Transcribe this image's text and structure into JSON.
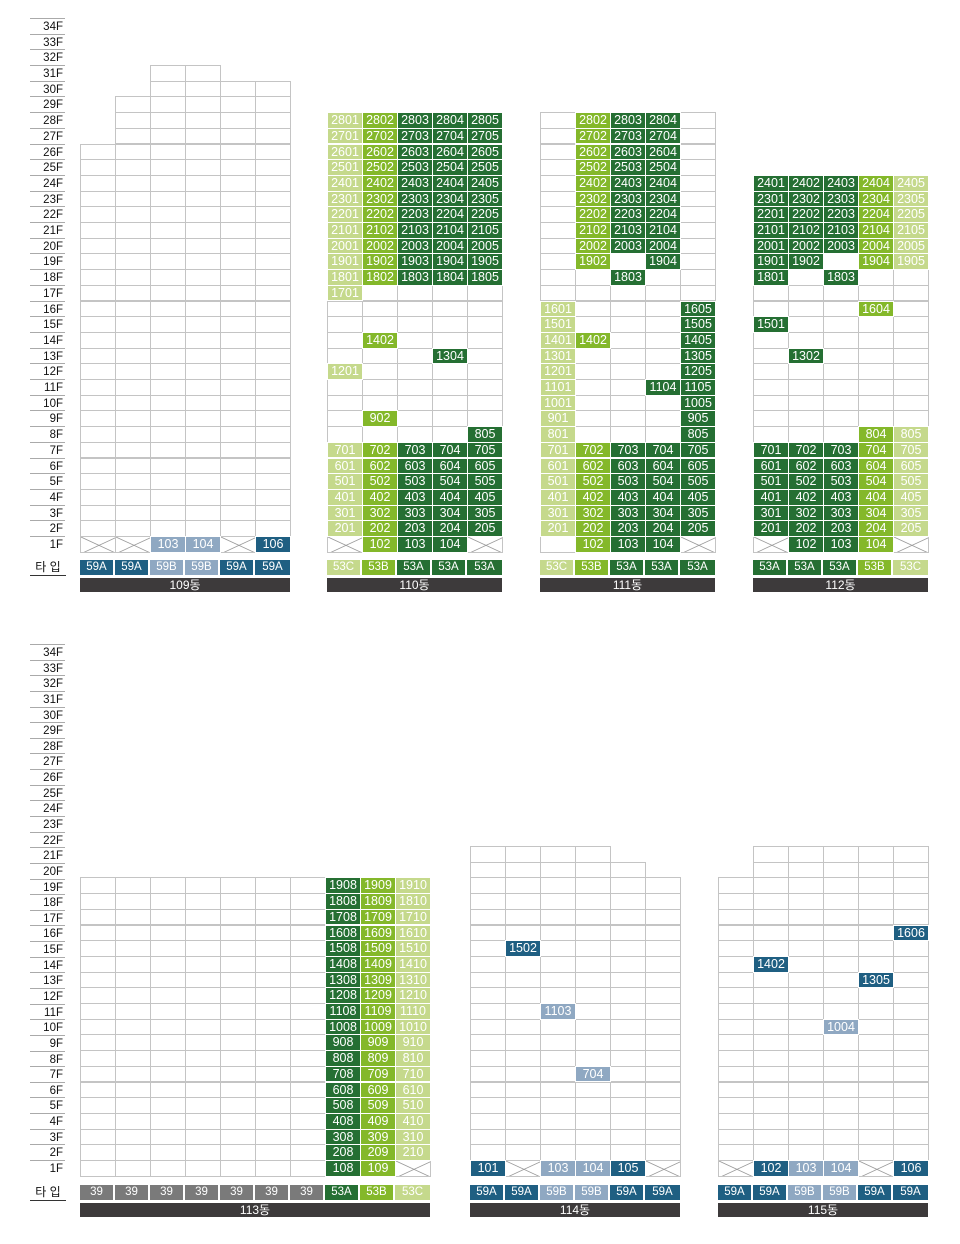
{
  "type_label": "타 입",
  "colors": {
    "53A": "#256f33",
    "53B": "#84b82a",
    "53C": "#c5d98c",
    "59A": "#1f5f82",
    "59B": "#8fa8c2",
    "39": "#7a7a7a"
  },
  "floor_labels": [
    "34F",
    "33F",
    "32F",
    "31F",
    "30F",
    "29F",
    "28F",
    "27F",
    "26F",
    "25F",
    "24F",
    "23F",
    "22F",
    "21F",
    "20F",
    "19F",
    "18F",
    "17F",
    "16F",
    "15F",
    "14F",
    "13F",
    "12F",
    "11F",
    "10F",
    "9F",
    "8F",
    "7F",
    "6F",
    "5F",
    "4F",
    "3F",
    "2F",
    "1F"
  ],
  "buildings": [
    {
      "name": "109동",
      "types": [
        "59A",
        "59A",
        "59B",
        "59B",
        "59A",
        "59A"
      ],
      "col_heights": [
        26,
        29,
        31,
        31,
        30,
        30
      ],
      "x_cells": [
        "101",
        "102",
        "105"
      ],
      "units": [
        "103",
        "104",
        "106"
      ]
    },
    {
      "name": "110동",
      "types": [
        "53C",
        "53B",
        "53A",
        "53A",
        "53A"
      ],
      "col_heights": [
        28,
        28,
        28,
        28,
        28
      ],
      "x_cells": [
        "101",
        "105"
      ],
      "units": [
        "2801",
        "2802",
        "2803",
        "2804",
        "2805",
        "2701",
        "2702",
        "2703",
        "2704",
        "2705",
        "2601",
        "2602",
        "2603",
        "2604",
        "2605",
        "2501",
        "2502",
        "2503",
        "2504",
        "2505",
        "2401",
        "2402",
        "2403",
        "2404",
        "2405",
        "2301",
        "2302",
        "2303",
        "2304",
        "2305",
        "2201",
        "2202",
        "2203",
        "2204",
        "2205",
        "2101",
        "2102",
        "2103",
        "2104",
        "2105",
        "2001",
        "2002",
        "2003",
        "2004",
        "2005",
        "1901",
        "1902",
        "1903",
        "1904",
        "1905",
        "1801",
        "1802",
        "1803",
        "1804",
        "1805",
        "1701",
        "1402",
        "1304",
        "1201",
        "902",
        "805",
        "701",
        "702",
        "703",
        "704",
        "705",
        "601",
        "602",
        "603",
        "604",
        "605",
        "501",
        "502",
        "503",
        "504",
        "505",
        "401",
        "402",
        "403",
        "404",
        "405",
        "301",
        "302",
        "303",
        "304",
        "305",
        "201",
        "202",
        "203",
        "204",
        "205",
        "102",
        "103",
        "104"
      ]
    },
    {
      "name": "111동",
      "types": [
        "53C",
        "53B",
        "53A",
        "53A",
        "53A"
      ],
      "col_heights": [
        28,
        28,
        28,
        28,
        28
      ],
      "x_cells": [
        "105"
      ],
      "units": [
        "2802",
        "2803",
        "2804",
        "2702",
        "2703",
        "2704",
        "2602",
        "2603",
        "2604",
        "2502",
        "2503",
        "2504",
        "2402",
        "2403",
        "2404",
        "2302",
        "2303",
        "2304",
        "2202",
        "2203",
        "2204",
        "2102",
        "2103",
        "2104",
        "2002",
        "2003",
        "2004",
        "1902",
        "1904",
        "1803",
        "1601",
        "1605",
        "1501",
        "1505",
        "1401",
        "1402",
        "1405",
        "1301",
        "1305",
        "1201",
        "1205",
        "1101",
        "1104",
        "1105",
        "1001",
        "1005",
        "901",
        "905",
        "801",
        "805",
        "701",
        "702",
        "703",
        "704",
        "705",
        "601",
        "602",
        "603",
        "604",
        "605",
        "501",
        "502",
        "503",
        "504",
        "505",
        "401",
        "402",
        "403",
        "404",
        "405",
        "301",
        "302",
        "303",
        "304",
        "305",
        "201",
        "202",
        "203",
        "204",
        "205",
        "102",
        "103",
        "104"
      ]
    },
    {
      "name": "112동",
      "types": [
        "53A",
        "53A",
        "53A",
        "53B",
        "53C"
      ],
      "col_heights": [
        24,
        24,
        24,
        24,
        24
      ],
      "x_cells": [
        "101",
        "105"
      ],
      "units": [
        "2401",
        "2402",
        "2403",
        "2404",
        "2405",
        "2301",
        "2302",
        "2303",
        "2304",
        "2305",
        "2201",
        "2202",
        "2203",
        "2204",
        "2205",
        "2101",
        "2102",
        "2103",
        "2104",
        "2105",
        "2001",
        "2002",
        "2003",
        "2004",
        "2005",
        "1901",
        "1902",
        "1904",
        "1905",
        "1801",
        "1803",
        "1604",
        "1501",
        "1302",
        "804",
        "805",
        "701",
        "702",
        "703",
        "704",
        "705",
        "601",
        "602",
        "603",
        "604",
        "605",
        "501",
        "502",
        "503",
        "504",
        "505",
        "401",
        "402",
        "403",
        "404",
        "405",
        "301",
        "302",
        "303",
        "304",
        "305",
        "201",
        "202",
        "203",
        "204",
        "205",
        "102",
        "103",
        "104"
      ]
    },
    {
      "name": "113동",
      "types": [
        "39",
        "39",
        "39",
        "39",
        "39",
        "39",
        "39",
        "53A",
        "53B",
        "53C"
      ],
      "col_heights": [
        19,
        19,
        19,
        19,
        19,
        19,
        19,
        19,
        19,
        19
      ],
      "x_cells": [
        "110"
      ],
      "units": [
        "1908",
        "1909",
        "1910",
        "1808",
        "1809",
        "1810",
        "1708",
        "1709",
        "1710",
        "1608",
        "1609",
        "1610",
        "1508",
        "1509",
        "1510",
        "1408",
        "1409",
        "1410",
        "1308",
        "1309",
        "1310",
        "1208",
        "1209",
        "1210",
        "1108",
        "1109",
        "1110",
        "1008",
        "1009",
        "1010",
        "908",
        "909",
        "910",
        "808",
        "809",
        "810",
        "708",
        "709",
        "710",
        "608",
        "609",
        "610",
        "508",
        "509",
        "510",
        "408",
        "409",
        "410",
        "308",
        "309",
        "310",
        "208",
        "209",
        "210",
        "108",
        "109"
      ]
    },
    {
      "name": "114동",
      "types": [
        "59A",
        "59A",
        "59B",
        "59B",
        "59A",
        "59A"
      ],
      "col_heights": [
        21,
        21,
        21,
        21,
        20,
        19
      ],
      "x_cells": [
        "102",
        "106"
      ],
      "units": [
        "1502",
        "1103",
        "704",
        "101",
        "103",
        "104",
        "105"
      ]
    },
    {
      "name": "115동",
      "types": [
        "59A",
        "59A",
        "59B",
        "59B",
        "59A",
        "59A"
      ],
      "col_heights": [
        19,
        21,
        21,
        21,
        21,
        21
      ],
      "x_cells": [
        "101",
        "105"
      ],
      "units": [
        "1606",
        "1402",
        "1305",
        "1004",
        "102",
        "103",
        "104",
        "106"
      ]
    }
  ]
}
